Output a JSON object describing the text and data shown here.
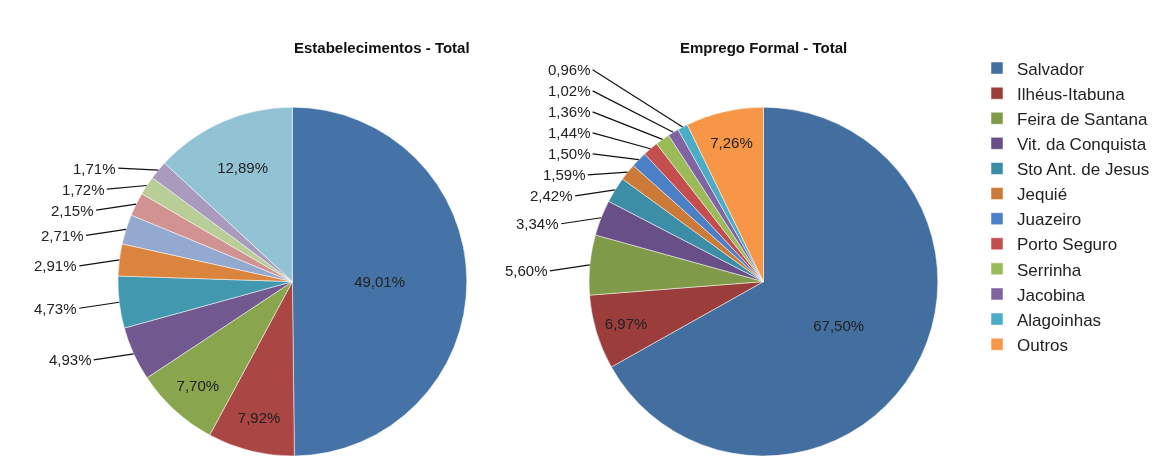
{
  "chart_data": [
    {
      "type": "pie",
      "title": "Estabelecimentos - Total",
      "categories": [
        null,
        null,
        null,
        null,
        null,
        null,
        null,
        null,
        null,
        null,
        null
      ],
      "values": [
        49.01,
        7.92,
        7.7,
        4.93,
        4.73,
        2.91,
        2.71,
        2.15,
        1.72,
        1.71,
        12.89
      ],
      "value_labels": [
        "49,01%",
        "7,92%",
        "7,70%",
        "4,93%",
        "4,73%",
        "2,91%",
        "2,71%",
        "2,15%",
        "1,72%",
        "1,71%",
        "12,89%"
      ],
      "colors": [
        "#4572a7",
        "#aa4643",
        "#89a54e",
        "#71588f",
        "#4198af",
        "#db843d",
        "#93a9cf",
        "#d19392",
        "#b9cd96",
        "#a99bbd",
        "#92c3d5"
      ]
    },
    {
      "type": "pie",
      "title": "Emprego Formal - Total",
      "categories": [
        "Salvador",
        "Ilhéus-Itabuna",
        "Feira de Santana",
        "Vit. da Conquista",
        "Sto Ant. de Jesus",
        "Jequié",
        "Juazeiro",
        "Porto Seguro",
        "Serrinha",
        "Jacobina",
        "Alagoinhas",
        "Outros"
      ],
      "values": [
        67.5,
        6.97,
        5.6,
        3.34,
        2.42,
        1.59,
        1.5,
        1.44,
        1.36,
        1.02,
        0.96,
        7.26
      ],
      "value_labels": [
        "67,50%",
        "6,97%",
        "5,60%",
        "3,34%",
        "2,42%",
        "1,59%",
        "1,50%",
        "1,44%",
        "1,36%",
        "1,02%",
        "0,96%",
        "7,26%"
      ],
      "colors": [
        "#436ea0",
        "#9b3d3b",
        "#7f9a48",
        "#684f87",
        "#3c8da6",
        "#cc7a38",
        "#4b7fc6",
        "#c44d4d",
        "#9bbb59",
        "#8064a2",
        "#4bacc6",
        "#f79646"
      ],
      "legend": "right"
    }
  ]
}
